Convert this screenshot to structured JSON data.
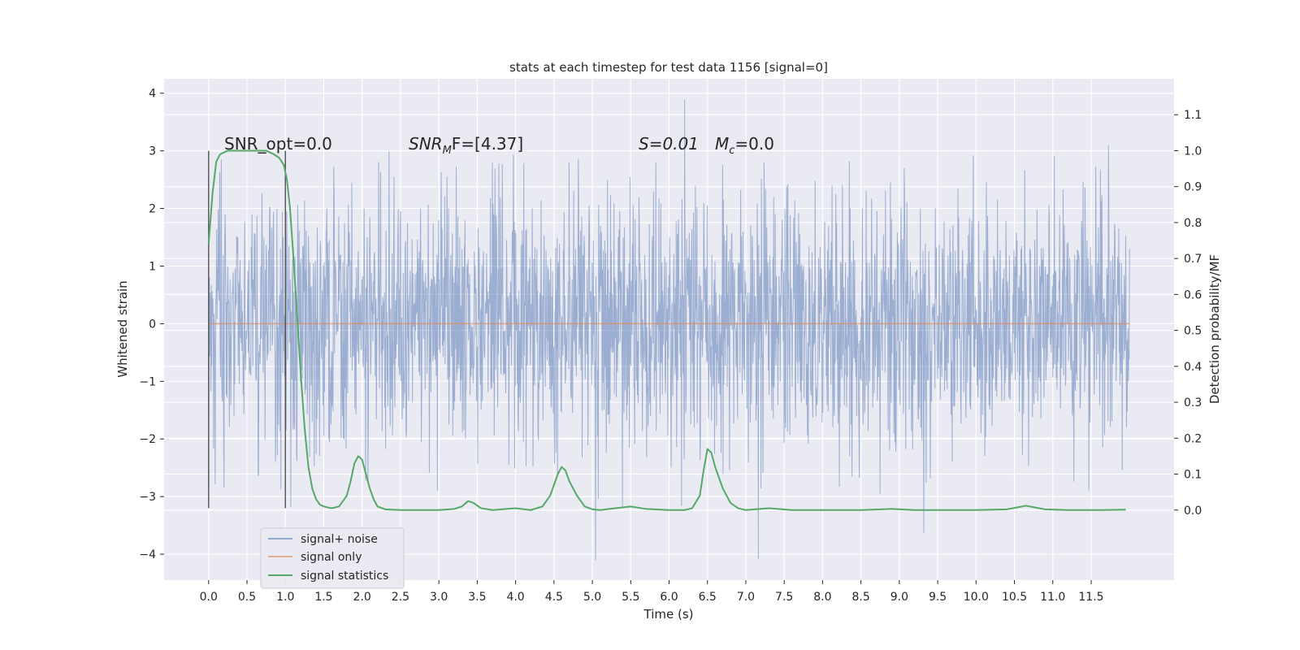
{
  "chart_data": {
    "type": "line",
    "title": "stats at each timestep for test data 1156 [signal=0]",
    "xlabel": "Time (s)",
    "ylabel": "Whitened strain",
    "y2label": "Detection probability/MF",
    "xlim": [
      -0.58,
      12.58
    ],
    "ylim": [
      -4.45,
      4.25
    ],
    "y2lim": [
      -0.195,
      1.2
    ],
    "grid": true,
    "x_ticks": [
      0.0,
      0.5,
      1.0,
      1.5,
      2.0,
      2.5,
      3.0,
      3.5,
      4.0,
      4.5,
      5.0,
      5.5,
      6.0,
      6.5,
      7.0,
      7.5,
      8.0,
      8.5,
      9.0,
      9.5,
      10.0,
      10.5,
      11.0,
      11.5
    ],
    "x_tick_labels": [
      "0.0",
      "0.5",
      "1.0",
      "1.5",
      "2.0",
      "2.5",
      "3.0",
      "3.5",
      "4.0",
      "4.5",
      "5.0",
      "5.5",
      "6.0",
      "6.5",
      "7.0",
      "7.5",
      "8.0",
      "8.5",
      "9.0",
      "9.5",
      "10.0",
      "10.5",
      "11.0",
      "11.5"
    ],
    "y_ticks": [
      4,
      3,
      2,
      1,
      0,
      -1,
      -2,
      -3,
      -4
    ],
    "y_tick_labels": [
      "4",
      "3",
      "2",
      "1",
      "0",
      "−1",
      "−2",
      "−3",
      "−4"
    ],
    "y2_ticks": [
      1.1,
      1.0,
      0.9,
      0.8,
      0.7,
      0.6,
      0.5,
      0.4,
      0.3,
      0.2,
      0.1,
      0.0
    ],
    "y2_tick_labels": [
      "1.1",
      "1.0",
      "0.9",
      "0.8",
      "0.7",
      "0.6",
      "0.5",
      "0.4",
      "0.3",
      "0.2",
      "0.1",
      "0.0"
    ],
    "annotations": {
      "snr_opt": "SNR_opt=0.0",
      "snr_mf": "SNR",
      "snr_mf_sub": "M",
      "snr_mf_rest": "F=[4.37]",
      "s_stat": "S=0.01",
      "mc_name": "M",
      "mc_sub": "c",
      "mc_rest": "=0.0"
    },
    "vertical_lines": [
      0.0,
      1.0
    ],
    "vertical_line_range": [
      -3.2,
      3.0
    ],
    "legend": {
      "placement": "lower-left",
      "entries": [
        "signal+ noise",
        "signal only",
        "signal statistics"
      ]
    },
    "series": [
      {
        "name": "signal+ noise",
        "axis": "left",
        "color": "#4c72b0",
        "x_range": [
          0.0,
          12.0
        ],
        "typical_band": [
          -2.0,
          2.0
        ],
        "extremes": [
          -4.1,
          3.9
        ]
      },
      {
        "name": "signal only",
        "axis": "left",
        "color": "#dd8452",
        "x": [
          0.0,
          12.0
        ],
        "y": [
          0.0,
          0.0
        ]
      },
      {
        "name": "signal statistics",
        "axis": "right",
        "color": "#55a868",
        "x": [
          0.0,
          0.05,
          0.1,
          0.15,
          0.25,
          0.4,
          0.6,
          0.75,
          0.85,
          0.92,
          0.98,
          1.02,
          1.06,
          1.1,
          1.15,
          1.2,
          1.25,
          1.3,
          1.35,
          1.4,
          1.45,
          1.5,
          1.6,
          1.7,
          1.8,
          1.85,
          1.9,
          1.95,
          2.0,
          2.05,
          2.1,
          2.15,
          2.2,
          2.3,
          2.5,
          3.0,
          3.2,
          3.3,
          3.38,
          3.45,
          3.55,
          3.7,
          4.0,
          4.2,
          4.35,
          4.45,
          4.55,
          4.6,
          4.65,
          4.7,
          4.8,
          4.9,
          5.0,
          5.1,
          5.3,
          5.5,
          5.7,
          6.0,
          6.2,
          6.3,
          6.4,
          6.45,
          6.5,
          6.55,
          6.6,
          6.7,
          6.8,
          6.9,
          7.0,
          7.3,
          7.6,
          8.0,
          8.5,
          8.9,
          9.2,
          10.0,
          10.4,
          10.55,
          10.65,
          10.75,
          10.9,
          11.2,
          11.6,
          11.95
        ],
        "y": [
          0.74,
          0.88,
          0.97,
          0.99,
          1.0,
          1.0,
          1.0,
          1.0,
          0.99,
          0.98,
          0.96,
          0.92,
          0.84,
          0.72,
          0.55,
          0.38,
          0.23,
          0.12,
          0.06,
          0.03,
          0.015,
          0.01,
          0.005,
          0.01,
          0.04,
          0.08,
          0.13,
          0.15,
          0.14,
          0.1,
          0.06,
          0.03,
          0.01,
          0.002,
          0.0,
          0.0,
          0.003,
          0.01,
          0.025,
          0.02,
          0.005,
          0.0,
          0.005,
          0.0,
          0.01,
          0.04,
          0.1,
          0.12,
          0.11,
          0.08,
          0.04,
          0.01,
          0.002,
          0.0,
          0.005,
          0.01,
          0.003,
          0.0,
          0.0,
          0.005,
          0.04,
          0.11,
          0.17,
          0.16,
          0.12,
          0.06,
          0.02,
          0.005,
          0.0,
          0.005,
          0.0,
          0.0,
          0.0,
          0.003,
          0.0,
          0.0,
          0.002,
          0.008,
          0.012,
          0.008,
          0.002,
          0.0,
          0.0,
          0.001
        ]
      }
    ]
  }
}
